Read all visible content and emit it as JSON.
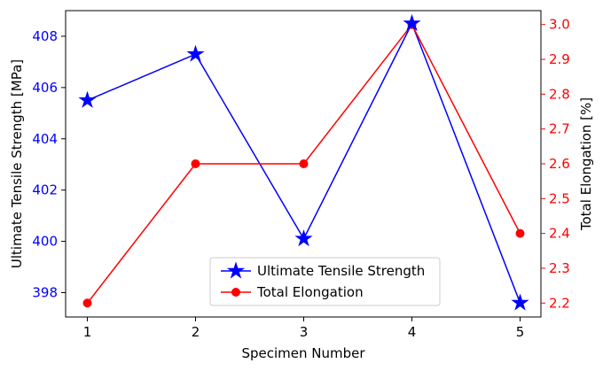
{
  "chart_data": {
    "type": "line",
    "x_label": "Specimen Number",
    "y_left_label": "Ultimate Tensile Strength [MPa]",
    "y_right_label": "Total Elongation [%]",
    "x_ticks": [
      1,
      2,
      3,
      4,
      5
    ],
    "y_left_range": [
      397.05,
      409.0
    ],
    "y_left_ticks": [
      398,
      400,
      402,
      404,
      406,
      408
    ],
    "y_right_range": [
      2.16,
      3.04
    ],
    "y_right_ticks": [
      2.2,
      2.3,
      2.4,
      2.5,
      2.6,
      2.7,
      2.8,
      2.9,
      3.0
    ],
    "left_axis_color": "#0000ff",
    "right_axis_color": "#ff0000",
    "legend_position": "bottom-center",
    "series": [
      {
        "name": "Ultimate Tensile Strength",
        "axis": "left",
        "color": "#0000ff",
        "marker": "star",
        "x": [
          1,
          2,
          3,
          4,
          5
        ],
        "values": [
          405.5,
          407.3,
          400.1,
          408.5,
          397.6
        ]
      },
      {
        "name": "Total Elongation",
        "axis": "right",
        "color": "#ff0000",
        "marker": "circle",
        "x": [
          1,
          2,
          3,
          4,
          5
        ],
        "values": [
          2.2,
          2.6,
          2.6,
          3.0,
          2.4
        ]
      }
    ]
  }
}
